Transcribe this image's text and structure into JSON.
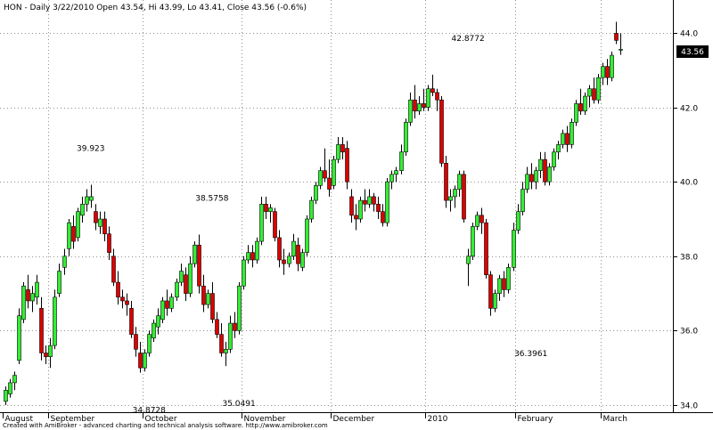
{
  "chart_data": {
    "type": "candlestick",
    "title": "HON - Daily 3/22/2010 Open 43.54, Hi 43.99, Lo 43.41, Close 43.56 (-0.6%)",
    "footer": "Created with AmiBroker - advanced charting and technical analysis software. http://www.amibroker.com",
    "last_price_label": "43.56",
    "last_price": 43.56,
    "ylim": [
      33.7,
      44.7
    ],
    "y_ticks": [
      {
        "value": 34,
        "label": "34.0"
      },
      {
        "value": 36,
        "label": "36.0"
      },
      {
        "value": 38,
        "label": "38.0"
      },
      {
        "value": 40,
        "label": "40.0"
      },
      {
        "value": 42,
        "label": "42.0"
      },
      {
        "value": 44,
        "label": "44.0"
      }
    ],
    "x_months": [
      {
        "label": "August",
        "index": 0
      },
      {
        "label": "September",
        "index": 10
      },
      {
        "label": "October",
        "index": 31
      },
      {
        "label": "November",
        "index": 53
      },
      {
        "label": "December",
        "index": 73
      },
      {
        "label": "2010",
        "index": 94
      },
      {
        "label": "February",
        "index": 114
      },
      {
        "label": "March",
        "index": 133
      }
    ],
    "annotations": [
      {
        "text": "39.923",
        "index": 19,
        "value": 39.923,
        "position": "above"
      },
      {
        "text": "34.8728",
        "index": 32,
        "value": 34.8728,
        "position": "below"
      },
      {
        "text": "38.5758",
        "index": 46,
        "value": 38.5758,
        "position": "above"
      },
      {
        "text": "35.0491",
        "index": 52,
        "value": 35.0491,
        "position": "below"
      },
      {
        "text": "42.8772",
        "index": 103,
        "value": 42.8772,
        "position": "above"
      },
      {
        "text": "36.3961",
        "index": 117,
        "value": 36.3961,
        "position": "below"
      }
    ],
    "colors": {
      "up": "#33ee33",
      "down": "#dd0000",
      "outline": "#000000"
    },
    "candles": [
      [
        34.1,
        34.5,
        34.0,
        34.4
      ],
      [
        34.3,
        34.7,
        34.2,
        34.6
      ],
      [
        34.6,
        34.9,
        34.4,
        34.8
      ],
      [
        35.2,
        36.6,
        35.1,
        36.4
      ],
      [
        36.3,
        37.3,
        36.2,
        37.2
      ],
      [
        37.1,
        37.5,
        36.6,
        36.8
      ],
      [
        36.8,
        37.2,
        36.5,
        37.0
      ],
      [
        36.9,
        37.5,
        36.7,
        37.3
      ],
      [
        36.6,
        36.9,
        35.2,
        35.4
      ],
      [
        35.4,
        35.6,
        35.1,
        35.3
      ],
      [
        35.3,
        35.8,
        35.0,
        35.6
      ],
      [
        35.6,
        37.1,
        35.5,
        36.9
      ],
      [
        37.0,
        37.8,
        36.9,
        37.6
      ],
      [
        37.7,
        38.2,
        37.5,
        38.0
      ],
      [
        38.2,
        39.0,
        38.0,
        38.9
      ],
      [
        38.8,
        39.1,
        38.2,
        38.4
      ],
      [
        38.5,
        39.3,
        38.4,
        39.2
      ],
      [
        39.1,
        39.6,
        38.9,
        39.4
      ],
      [
        39.4,
        39.8,
        39.2,
        39.6
      ],
      [
        39.5,
        39.92,
        39.3,
        39.6
      ],
      [
        39.2,
        39.4,
        38.7,
        38.9
      ],
      [
        38.8,
        39.2,
        38.6,
        39.0
      ],
      [
        39.0,
        39.2,
        38.4,
        38.6
      ],
      [
        38.6,
        38.8,
        37.9,
        38.1
      ],
      [
        38.0,
        38.2,
        37.2,
        37.3
      ],
      [
        37.3,
        37.6,
        36.7,
        36.9
      ],
      [
        36.9,
        37.1,
        36.6,
        36.8
      ],
      [
        36.8,
        37.0,
        36.4,
        36.7
      ],
      [
        36.6,
        36.8,
        35.8,
        35.9
      ],
      [
        35.9,
        36.1,
        35.3,
        35.5
      ],
      [
        35.4,
        35.7,
        34.87,
        35.0
      ],
      [
        35.0,
        35.5,
        34.9,
        35.4
      ],
      [
        35.4,
        36.0,
        35.3,
        35.9
      ],
      [
        35.8,
        36.3,
        35.7,
        36.2
      ],
      [
        36.1,
        36.6,
        35.9,
        36.4
      ],
      [
        36.3,
        36.9,
        36.2,
        36.8
      ],
      [
        36.8,
        37.1,
        36.4,
        36.6
      ],
      [
        36.6,
        37.0,
        36.5,
        36.9
      ],
      [
        36.9,
        37.4,
        36.8,
        37.3
      ],
      [
        37.3,
        37.8,
        37.2,
        37.6
      ],
      [
        37.5,
        37.7,
        36.8,
        37.0
      ],
      [
        37.0,
        38.0,
        36.9,
        37.8
      ],
      [
        37.8,
        38.4,
        37.7,
        38.3
      ],
      [
        38.3,
        38.58,
        37.0,
        37.2
      ],
      [
        37.2,
        37.5,
        36.5,
        36.7
      ],
      [
        36.7,
        37.1,
        36.6,
        37.0
      ],
      [
        37.0,
        37.3,
        36.2,
        36.3
      ],
      [
        36.3,
        36.5,
        35.8,
        35.9
      ],
      [
        35.9,
        36.2,
        35.3,
        35.4
      ],
      [
        35.4,
        35.7,
        35.05,
        35.5
      ],
      [
        35.5,
        36.4,
        35.4,
        36.2
      ],
      [
        36.2,
        36.5,
        35.8,
        36.0
      ],
      [
        36.0,
        37.3,
        35.9,
        37.2
      ],
      [
        37.2,
        38.0,
        37.1,
        37.9
      ],
      [
        37.9,
        38.3,
        37.8,
        38.1
      ],
      [
        38.1,
        38.3,
        37.7,
        37.9
      ],
      [
        37.9,
        38.5,
        37.8,
        38.4
      ],
      [
        38.4,
        39.6,
        38.3,
        39.4
      ],
      [
        39.4,
        39.6,
        39.0,
        39.2
      ],
      [
        39.2,
        39.4,
        38.9,
        39.3
      ],
      [
        39.2,
        39.3,
        38.4,
        38.5
      ],
      [
        38.5,
        38.7,
        37.7,
        37.9
      ],
      [
        37.9,
        38.2,
        37.5,
        37.8
      ],
      [
        37.8,
        38.1,
        37.7,
        38.0
      ],
      [
        38.0,
        38.6,
        37.9,
        38.4
      ],
      [
        38.3,
        38.5,
        37.6,
        37.8
      ],
      [
        37.7,
        38.2,
        37.6,
        38.1
      ],
      [
        38.1,
        39.1,
        38.0,
        39.0
      ],
      [
        39.0,
        39.6,
        38.9,
        39.5
      ],
      [
        39.5,
        40.0,
        39.4,
        39.9
      ],
      [
        39.9,
        40.4,
        39.8,
        40.3
      ],
      [
        40.3,
        40.9,
        40.0,
        40.1
      ],
      [
        40.1,
        40.6,
        39.6,
        39.8
      ],
      [
        39.9,
        40.7,
        39.8,
        40.6
      ],
      [
        40.6,
        41.2,
        40.5,
        41.0
      ],
      [
        41.0,
        41.2,
        40.6,
        40.8
      ],
      [
        40.9,
        41.1,
        39.8,
        40.0
      ],
      [
        39.6,
        39.8,
        38.9,
        39.1
      ],
      [
        39.1,
        39.4,
        38.7,
        39.0
      ],
      [
        39.0,
        39.6,
        38.9,
        39.5
      ],
      [
        39.5,
        39.8,
        39.2,
        39.4
      ],
      [
        39.4,
        39.8,
        39.3,
        39.6
      ],
      [
        39.6,
        39.7,
        39.2,
        39.4
      ],
      [
        39.4,
        39.6,
        39.0,
        39.2
      ],
      [
        39.2,
        39.4,
        38.8,
        38.9
      ],
      [
        38.9,
        40.1,
        38.8,
        40.0
      ],
      [
        40.0,
        40.3,
        39.8,
        40.2
      ],
      [
        40.2,
        40.4,
        40.0,
        40.3
      ],
      [
        40.3,
        41.0,
        40.2,
        40.8
      ],
      [
        40.8,
        41.7,
        40.7,
        41.6
      ],
      [
        41.6,
        42.4,
        41.5,
        42.2
      ],
      [
        42.2,
        42.6,
        41.7,
        41.9
      ],
      [
        41.9,
        42.3,
        41.8,
        42.1
      ],
      [
        42.1,
        42.5,
        41.9,
        42.0
      ],
      [
        42.0,
        42.6,
        41.9,
        42.5
      ],
      [
        42.5,
        42.88,
        42.3,
        42.4
      ],
      [
        42.4,
        42.5,
        41.9,
        42.2
      ],
      [
        42.2,
        42.3,
        40.4,
        40.5
      ],
      [
        40.5,
        40.7,
        39.3,
        39.5
      ],
      [
        39.5,
        39.8,
        39.2,
        39.6
      ],
      [
        39.6,
        39.9,
        39.3,
        39.8
      ],
      [
        39.8,
        40.3,
        39.6,
        40.2
      ],
      [
        40.2,
        40.3,
        38.9,
        39.0
      ],
      [
        37.8,
        38.2,
        37.2,
        38.0
      ],
      [
        38.0,
        38.9,
        37.9,
        38.8
      ],
      [
        38.8,
        39.2,
        38.7,
        39.1
      ],
      [
        39.1,
        39.3,
        38.6,
        38.9
      ],
      [
        38.9,
        39.0,
        37.4,
        37.5
      ],
      [
        37.5,
        37.6,
        36.4,
        36.6
      ],
      [
        36.6,
        37.1,
        36.5,
        37.0
      ],
      [
        37.0,
        37.5,
        36.8,
        37.4
      ],
      [
        37.4,
        37.6,
        36.9,
        37.1
      ],
      [
        37.1,
        37.8,
        37.0,
        37.7
      ],
      [
        37.7,
        38.9,
        37.6,
        38.7
      ],
      [
        38.7,
        39.4,
        38.6,
        39.2
      ],
      [
        39.2,
        40.0,
        39.1,
        39.8
      ],
      [
        39.8,
        40.4,
        39.7,
        40.2
      ],
      [
        40.2,
        40.5,
        39.8,
        40.0
      ],
      [
        40.0,
        40.4,
        39.8,
        40.3
      ],
      [
        40.3,
        40.8,
        40.1,
        40.6
      ],
      [
        40.6,
        40.8,
        39.9,
        40.0
      ],
      [
        40.0,
        40.5,
        39.9,
        40.4
      ],
      [
        40.4,
        40.9,
        40.3,
        40.8
      ],
      [
        40.8,
        41.1,
        40.6,
        41.0
      ],
      [
        41.0,
        41.4,
        40.9,
        41.3
      ],
      [
        41.3,
        41.5,
        40.8,
        41.0
      ],
      [
        41.0,
        41.7,
        40.9,
        41.6
      ],
      [
        41.6,
        42.2,
        41.5,
        42.1
      ],
      [
        42.1,
        42.5,
        41.8,
        41.9
      ],
      [
        41.9,
        42.4,
        41.8,
        42.3
      ],
      [
        42.3,
        42.6,
        42.0,
        42.5
      ],
      [
        42.5,
        42.8,
        42.1,
        42.2
      ],
      [
        42.2,
        42.9,
        42.1,
        42.8
      ],
      [
        42.8,
        43.2,
        42.6,
        43.1
      ],
      [
        43.1,
        43.3,
        42.6,
        42.8
      ],
      [
        42.8,
        43.5,
        42.7,
        43.4
      ],
      [
        43.99,
        44.3,
        43.7,
        43.8
      ],
      [
        43.54,
        43.99,
        43.41,
        43.56
      ]
    ]
  }
}
